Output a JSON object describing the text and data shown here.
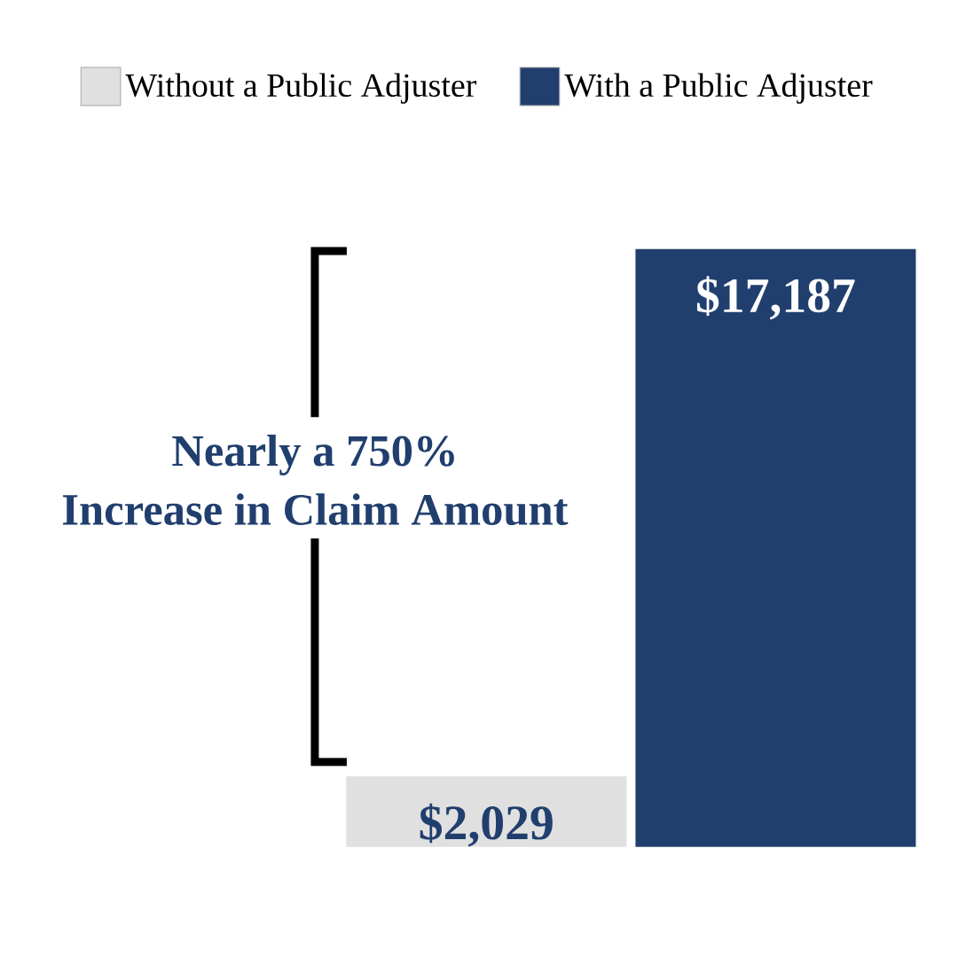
{
  "chart_data": {
    "type": "bar",
    "categories": [
      null
    ],
    "series": [
      {
        "name": "Without a Public Adjuster",
        "color": "#e0e0e0",
        "values": [
          2029
        ],
        "value_labels": [
          "$2,029"
        ]
      },
      {
        "name": "With a Public Adjuster",
        "color": "#213f6e",
        "values": [
          17187
        ],
        "value_labels": [
          "$17,187"
        ]
      }
    ],
    "annotations": [
      "Nearly a 750%",
      "Increase in Claim Amount"
    ],
    "legend": "top"
  }
}
